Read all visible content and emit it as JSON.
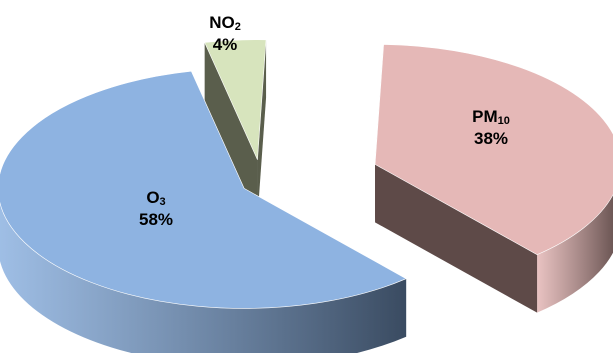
{
  "chart_data": {
    "type": "pie",
    "style": "3d-exploded",
    "legend": "none",
    "slices": [
      {
        "name": "PM",
        "name_sub": "10",
        "value": 38,
        "value_label": "38%",
        "top_color": "#e5b8b7",
        "side_color": "#5e4a48"
      },
      {
        "name": "O",
        "name_sub": "3",
        "value": 58,
        "value_label": "58%",
        "top_color": "#8eb3e1",
        "side_color": "#3a4b61"
      },
      {
        "name": "NO",
        "name_sub": "2",
        "value": 4,
        "value_label": "4%",
        "top_color": "#d7e4bd",
        "side_color": "#5a5e4c"
      }
    ]
  }
}
